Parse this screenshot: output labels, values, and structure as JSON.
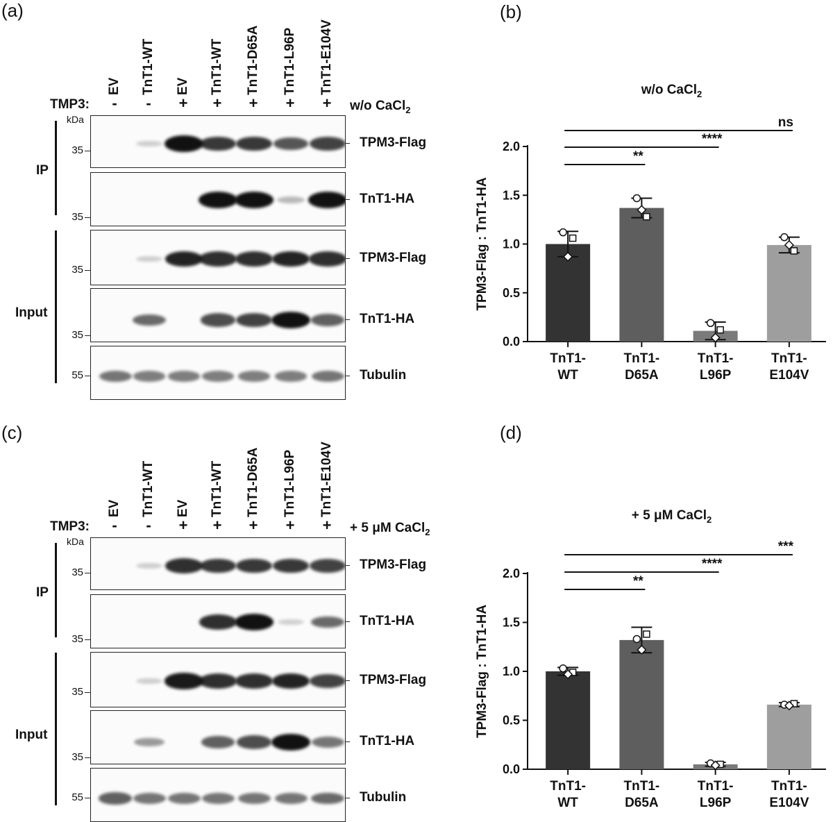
{
  "blot_panels": [
    {
      "letter": "(a)",
      "lanes": [
        "EV",
        "TnT1-WT",
        "EV",
        "TnT1-WT",
        "TnT1-D65A",
        "TnT1-L96P",
        "TnT1-E104V"
      ],
      "tmp3_label": "TMP3:",
      "tmp3_signs": [
        "-",
        "-",
        "+",
        "+",
        "+",
        "+",
        "+"
      ],
      "condition": "w/o CaCl",
      "condition_sub": "2",
      "kda": "kDa",
      "group_ip": "IP",
      "group_input": "Input",
      "blots": [
        {
          "label": "TPM3-Flag",
          "mw": "35",
          "bands": [
            0,
            0.05,
            1.0,
            0.8,
            0.8,
            0.65,
            0.75
          ]
        },
        {
          "label": "TnT1-HA",
          "mw": "35",
          "bands": [
            0,
            0,
            0,
            1.0,
            1.0,
            0.15,
            1.0
          ]
        },
        {
          "label": "TPM3-Flag",
          "mw": "35",
          "bands": [
            0,
            0.05,
            0.9,
            0.85,
            0.85,
            0.9,
            0.85
          ]
        },
        {
          "label": "TnT1-HA",
          "mw": "35",
          "bands": [
            0,
            0.55,
            0,
            0.7,
            0.75,
            1.0,
            0.6
          ]
        },
        {
          "label": "Tubulin",
          "mw": "55",
          "bands": [
            0.5,
            0.45,
            0.45,
            0.45,
            0.45,
            0.45,
            0.5
          ]
        }
      ]
    },
    {
      "letter": "(c)",
      "lanes": [
        "EV",
        "TnT1-WT",
        "EV",
        "TnT1-WT",
        "TnT1-D65A",
        "TnT1-L96P",
        "TnT1-E104V"
      ],
      "tmp3_label": "TMP3:",
      "tmp3_signs": [
        "-",
        "-",
        "+",
        "+",
        "+",
        "+",
        "+"
      ],
      "condition": "+ 5 μM CaCl",
      "condition_sub": "2",
      "kda": "kDa",
      "group_ip": "IP",
      "group_input": "Input",
      "blots": [
        {
          "label": "TPM3-Flag",
          "mw": "35",
          "bands": [
            0,
            0.05,
            0.85,
            0.8,
            0.8,
            0.8,
            0.75
          ]
        },
        {
          "label": "TnT1-HA",
          "mw": "35",
          "bands": [
            0,
            0,
            0,
            0.85,
            1.0,
            0.03,
            0.55
          ]
        },
        {
          "label": "TPM3-Flag",
          "mw": "35",
          "bands": [
            0,
            0.05,
            0.95,
            0.85,
            0.85,
            0.9,
            0.75
          ]
        },
        {
          "label": "TnT1-HA",
          "mw": "35",
          "bands": [
            0,
            0.3,
            0,
            0.6,
            0.7,
            1.0,
            0.5
          ]
        },
        {
          "label": "Tubulin",
          "mw": "55",
          "bands": [
            0.6,
            0.5,
            0.5,
            0.5,
            0.5,
            0.5,
            0.55
          ]
        }
      ]
    }
  ],
  "chart_data": [
    {
      "letter": "(b)",
      "type": "bar",
      "title": "w/o CaCl",
      "title_sub": "2",
      "ylabel": "TPM3-Flag : TnT1-HA",
      "categories": [
        "TnT1-WT",
        "TnT1-D65A",
        "TnT1-L96P",
        "TnT1-E104V"
      ],
      "category_lines": [
        [
          "TnT1-",
          "WT"
        ],
        [
          "TnT1-",
          "D65A"
        ],
        [
          "TnT1-",
          "L96P"
        ],
        [
          "TnT1-",
          "E104V"
        ]
      ],
      "values": [
        1.0,
        1.37,
        0.11,
        0.99
      ],
      "errors": [
        0.13,
        0.1,
        0.09,
        0.08
      ],
      "points": [
        [
          1.12,
          1.06,
          0.87
        ],
        [
          1.47,
          1.28,
          1.35
        ],
        [
          0.19,
          0.12,
          0.04
        ],
        [
          1.07,
          0.93,
          0.99
        ]
      ],
      "bar_colors": [
        "#333333",
        "#5e5e5e",
        "#7a7a7a",
        "#9e9e9e"
      ],
      "ylim": [
        0,
        2.0
      ],
      "yticks": [
        "0.0",
        "0.5",
        "1.0",
        "1.5",
        "2.0"
      ],
      "significance": [
        {
          "from": 0,
          "to": 1,
          "label": "**"
        },
        {
          "from": 0,
          "to": 2,
          "label": "****"
        },
        {
          "from": 0,
          "to": 3,
          "label": "ns"
        }
      ]
    },
    {
      "letter": "(d)",
      "type": "bar",
      "title": "+ 5 μM CaCl",
      "title_sub": "2",
      "ylabel": "TPM3-Flag : TnT1-HA",
      "categories": [
        "TnT1-WT",
        "TnT1-D65A",
        "TnT1-L96P",
        "TnT1-E104V"
      ],
      "category_lines": [
        [
          "TnT1-",
          "WT"
        ],
        [
          "TnT1-",
          "D65A"
        ],
        [
          "TnT1-",
          "L96P"
        ],
        [
          "TnT1-",
          "E104V"
        ]
      ],
      "values": [
        1.0,
        1.32,
        0.05,
        0.66
      ],
      "errors": [
        0.04,
        0.13,
        0.02,
        0.02
      ],
      "points": [
        [
          1.03,
          0.99,
          0.97
        ],
        [
          1.33,
          1.38,
          1.22
        ],
        [
          0.06,
          0.05,
          0.04
        ],
        [
          0.66,
          0.67,
          0.65
        ]
      ],
      "bar_colors": [
        "#333333",
        "#5e5e5e",
        "#7a7a7a",
        "#9e9e9e"
      ],
      "ylim": [
        0,
        2.0
      ],
      "yticks": [
        "0.0",
        "0.5",
        "1.0",
        "1.5",
        "2.0"
      ],
      "significance": [
        {
          "from": 0,
          "to": 1,
          "label": "**"
        },
        {
          "from": 0,
          "to": 2,
          "label": "****"
        },
        {
          "from": 0,
          "to": 3,
          "label": "***"
        }
      ]
    }
  ]
}
